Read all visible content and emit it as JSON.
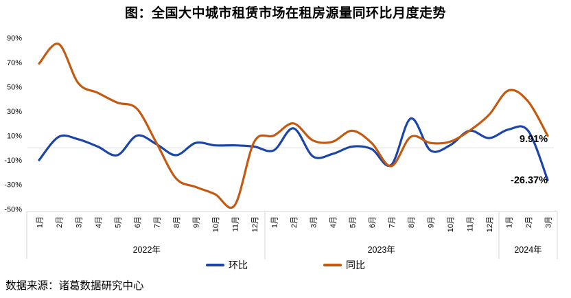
{
  "title": "图：全国大中城市租赁市场在租房源量同环比月度走势",
  "source": "数据来源：诸葛数据研究中心",
  "legend": {
    "mom": "环比",
    "yoy": "同比"
  },
  "chart_data": {
    "type": "line",
    "title": "图：全国大中城市租赁市场在租房源量同环比月度走势",
    "categories": [
      "1月",
      "2月",
      "3月",
      "4月",
      "5月",
      "6月",
      "7月",
      "8月",
      "9月",
      "10月",
      "11月",
      "12月",
      "1月",
      "2月",
      "3月",
      "4月",
      "5月",
      "6月",
      "7月",
      "8月",
      "9月",
      "10月",
      "11月",
      "12月",
      "1月",
      "2月",
      "3月"
    ],
    "year_groups": [
      {
        "label": "2022年",
        "from": 0,
        "to": 11
      },
      {
        "label": "2023年",
        "from": 12,
        "to": 23
      },
      {
        "label": "2024年",
        "from": 24,
        "to": 26
      }
    ],
    "series": [
      {
        "name": "环比",
        "color": "#1B45A7",
        "values": [
          -10,
          9,
          7,
          1,
          -6,
          10,
          3,
          -6,
          4,
          2,
          2,
          1,
          -2,
          16,
          -7,
          -5,
          1,
          -1,
          -14,
          24,
          -2,
          2,
          14,
          8,
          15,
          14,
          -26.37
        ]
      },
      {
        "name": "同比",
        "color": "#C45A11",
        "values": [
          69,
          85,
          53,
          45,
          37,
          32,
          4,
          -25,
          -32,
          -38,
          -47,
          5,
          10,
          20,
          6,
          5,
          14,
          4,
          -15,
          9,
          4,
          5,
          14,
          27,
          47,
          38,
          9.91
        ]
      }
    ],
    "ylim": [
      -50,
      90
    ],
    "yticks": [
      {
        "value": 90,
        "label": "90%"
      },
      {
        "value": 70,
        "label": "70%"
      },
      {
        "value": 50,
        "label": "50%"
      },
      {
        "value": 30,
        "label": "30%"
      },
      {
        "value": 10,
        "label": "10%"
      },
      {
        "value": -10,
        "label": "-10%"
      },
      {
        "value": -30,
        "label": "-30%"
      },
      {
        "value": -50,
        "label": "-50%"
      }
    ],
    "grid": "zero-line-only",
    "legend_position": "bottom",
    "end_labels": {
      "yoy": "9.91%",
      "mom": "-26.37%"
    }
  }
}
